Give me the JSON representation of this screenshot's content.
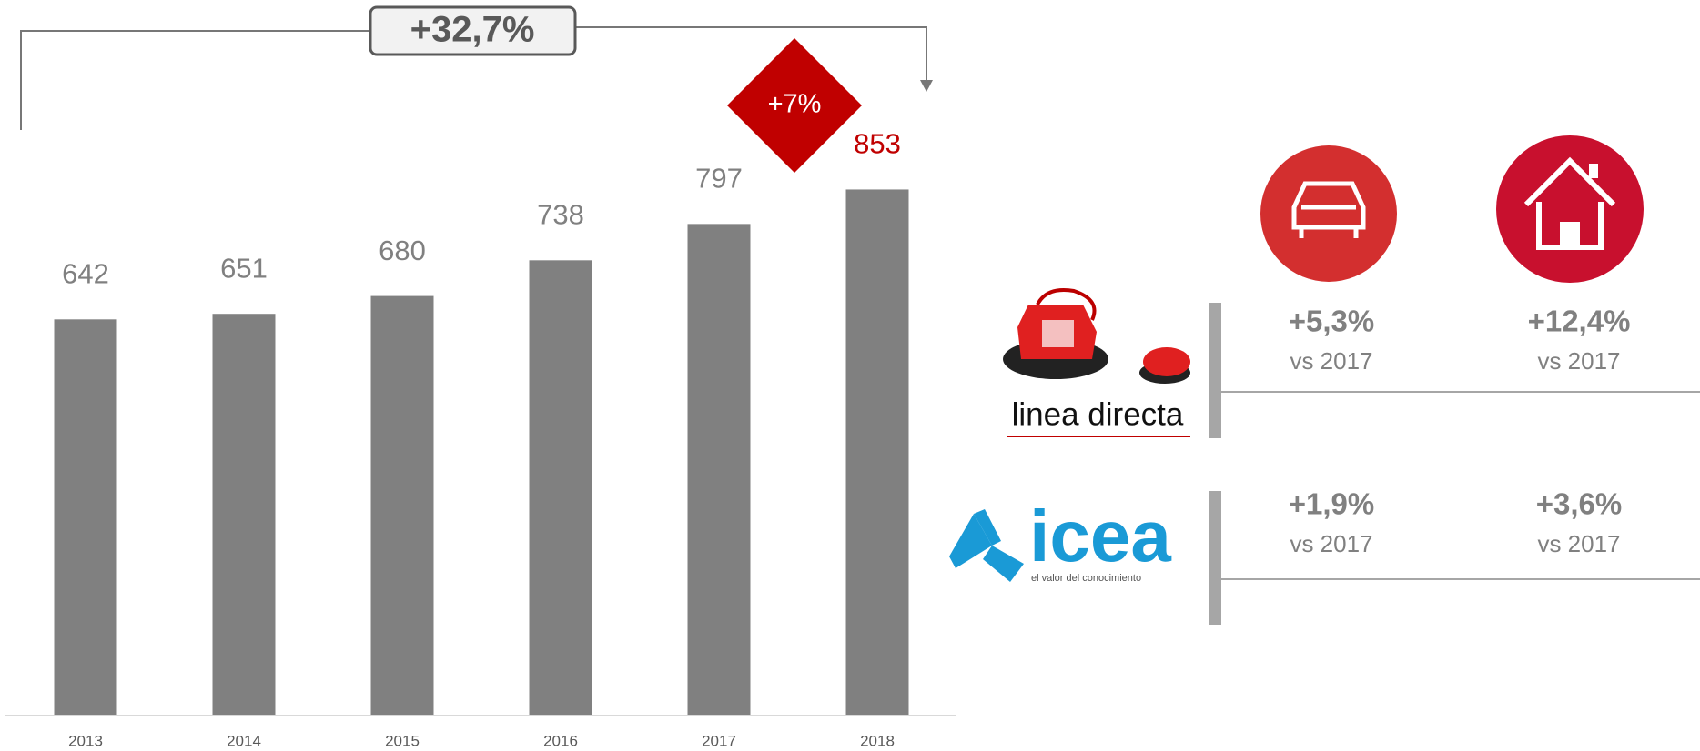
{
  "chart_data": {
    "type": "bar",
    "categories": [
      "2013",
      "2014",
      "2015",
      "2016",
      "2017",
      "2018"
    ],
    "values": [
      642,
      651,
      680,
      738,
      797,
      853
    ],
    "color": "#808080",
    "label_color": "#808080",
    "highlight_color": "#c00000",
    "annotations": {
      "total_growth": "+32,7%",
      "last_growth": "+7%"
    }
  },
  "panel": {
    "rows": [
      {
        "brand": "linea directa",
        "cells": [
          {
            "change": "+5,3%",
            "compare": "vs 2017"
          },
          {
            "change": "+12,4%",
            "compare": "vs 2017"
          }
        ]
      },
      {
        "brand": "icea",
        "tagline": "el valor del conocimiento",
        "cells": [
          {
            "change": "+1,9%",
            "compare": "vs 2017"
          },
          {
            "change": "+3,6%",
            "compare": "vs 2017"
          }
        ]
      }
    ]
  }
}
